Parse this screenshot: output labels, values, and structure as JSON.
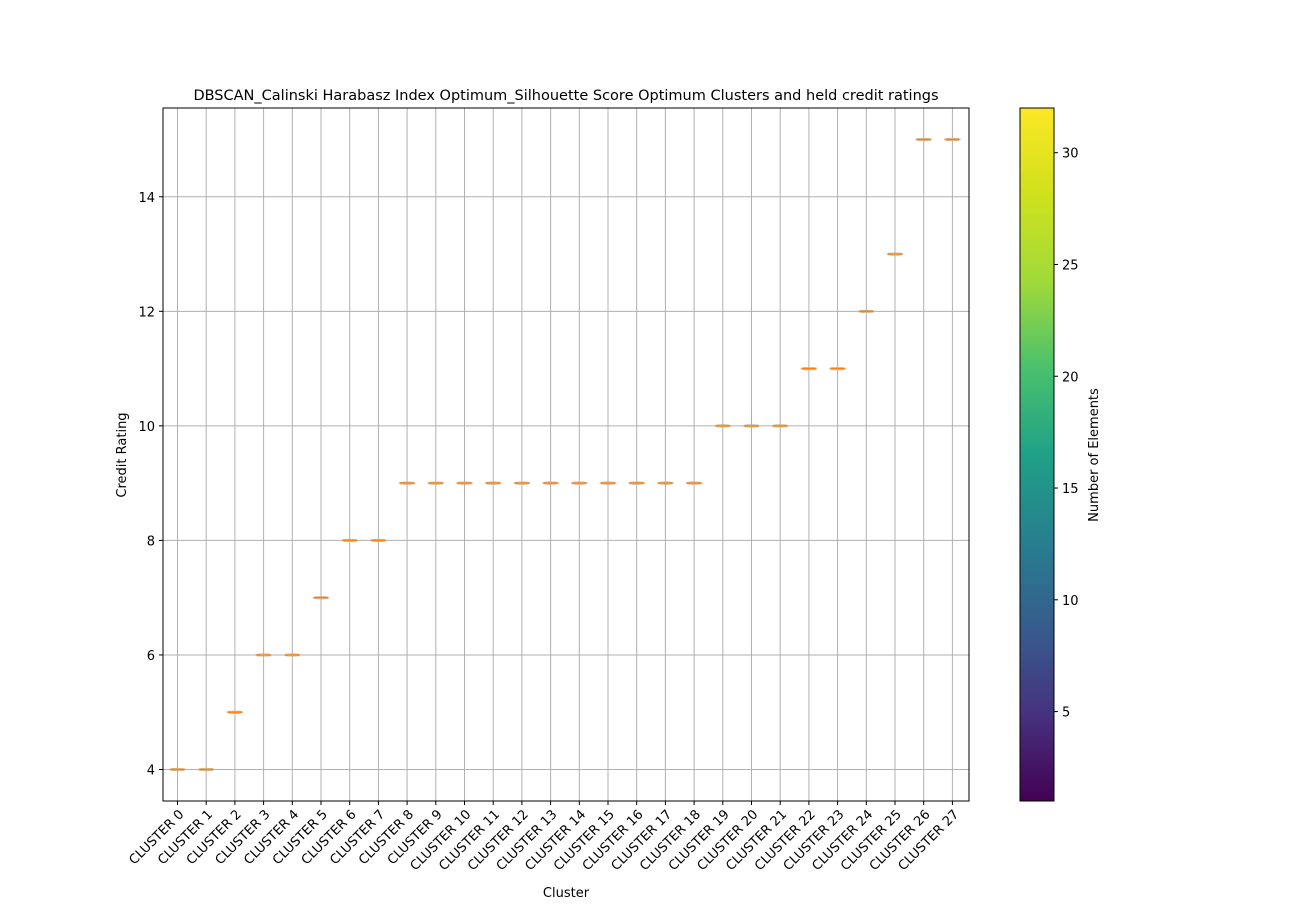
{
  "chart_data": {
    "type": "box",
    "title": "DBSCAN_Calinski Harabasz Index Optimum_Silhouette Score Optimum Clusters and held credit ratings",
    "xlabel": "Cluster",
    "ylabel": "Credit Rating",
    "categories": [
      "CLUSTER 0",
      "CLUSTER 1",
      "CLUSTER 2",
      "CLUSTER 3",
      "CLUSTER 4",
      "CLUSTER 5",
      "CLUSTER 6",
      "CLUSTER 7",
      "CLUSTER 8",
      "CLUSTER 9",
      "CLUSTER 10",
      "CLUSTER 11",
      "CLUSTER 12",
      "CLUSTER 13",
      "CLUSTER 14",
      "CLUSTER 15",
      "CLUSTER 16",
      "CLUSTER 17",
      "CLUSTER 18",
      "CLUSTER 19",
      "CLUSTER 20",
      "CLUSTER 21",
      "CLUSTER 22",
      "CLUSTER 23",
      "CLUSTER 24",
      "CLUSTER 25",
      "CLUSTER 26",
      "CLUSTER 27"
    ],
    "values": [
      4,
      4,
      5,
      6,
      6,
      7,
      8,
      8,
      9,
      9,
      9,
      9,
      9,
      9,
      9,
      9,
      9,
      9,
      9,
      10,
      10,
      10,
      11,
      11,
      12,
      13,
      15,
      15
    ],
    "ylim": [
      3.45,
      15.55
    ],
    "yticks": [
      4,
      6,
      8,
      10,
      12,
      14
    ],
    "grid": true,
    "median_color": "#ff7f0e",
    "colorbar": {
      "label": "Number of Elements",
      "range": [
        1,
        32
      ],
      "ticks": [
        5,
        10,
        15,
        20,
        25,
        30
      ],
      "colormap": "viridis"
    }
  }
}
